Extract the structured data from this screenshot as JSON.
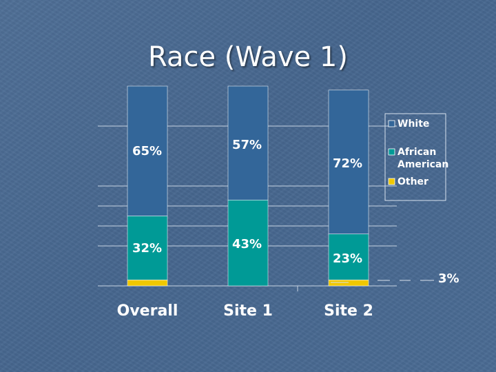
{
  "title": "Race (Wave 1)",
  "chart_data": {
    "type": "bar",
    "stacked": true,
    "categories": [
      "Overall",
      "Site 1",
      "Site 2"
    ],
    "series": [
      {
        "name": "Other",
        "color": "#f0c800",
        "values": [
          3,
          0,
          3
        ],
        "labels": [
          "",
          "",
          "3%"
        ]
      },
      {
        "name": "African American",
        "color": "#009a96",
        "values": [
          32,
          43,
          23
        ],
        "labels": [
          "32%",
          "43%",
          "23%"
        ]
      },
      {
        "name": "White",
        "color": "#336699",
        "values": [
          65,
          57,
          72
        ],
        "labels": [
          "65%",
          "57%",
          "72%"
        ]
      }
    ],
    "ylim": [
      0,
      100
    ],
    "legend_order": [
      "White",
      "African American",
      "Other"
    ],
    "legend_placement": "right",
    "grid": true
  }
}
